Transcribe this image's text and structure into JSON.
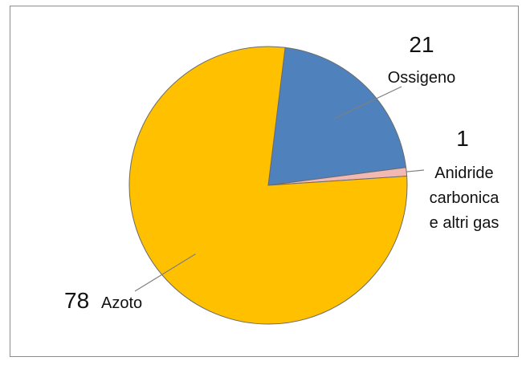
{
  "chart_data": {
    "type": "pie",
    "title": "",
    "start": "top",
    "direction": "clockwise",
    "slices": [
      {
        "label": "Ossigeno",
        "value": 21,
        "value_label": "21",
        "color": "#4F81BD"
      },
      {
        "label": "Anidride carbonica e altri gas",
        "label_lines": [
          "Anidride",
          "carbonica",
          "e altri gas"
        ],
        "value": 1,
        "value_label": "1",
        "color": "#F2B8B4"
      },
      {
        "label": "Azoto",
        "value": 78,
        "value_label": "78",
        "color": "#FFC000"
      }
    ],
    "legend": "none",
    "grid": false
  }
}
